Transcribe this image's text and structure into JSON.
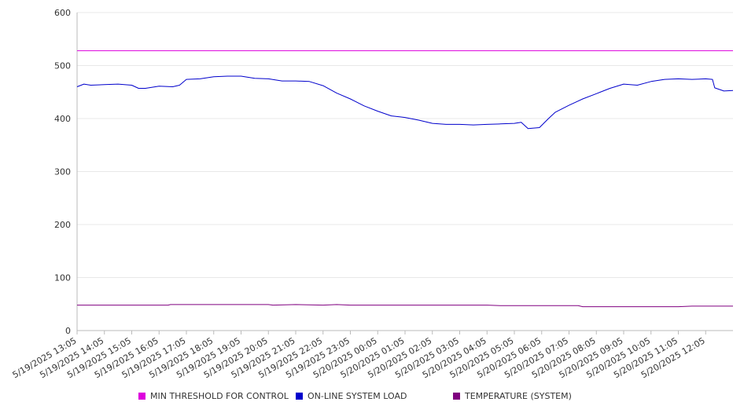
{
  "colors": {
    "threshold": "#dd00dd",
    "load": "#0000cc",
    "temperature": "#800080",
    "grid": "#e8e8e8",
    "axis": "#bbbbbb",
    "text": "#333333"
  },
  "legend": {
    "threshold": "MIN THRESHOLD FOR CONTROL",
    "load": "ON-LINE SYSTEM LOAD",
    "temperature": "TEMPERATURE (SYSTEM)"
  },
  "chart_data": {
    "type": "line",
    "title": "",
    "xlabel": "",
    "ylabel": "",
    "ylim": [
      0,
      600
    ],
    "yticks": [
      0,
      100,
      200,
      300,
      400,
      500,
      600
    ],
    "grid": true,
    "legend_position": "bottom",
    "x_tick_labels": [
      "5/19/2025 13:05",
      "5/19/2025 14:05",
      "5/19/2025 15:05",
      "5/19/2025 16:05",
      "5/19/2025 17:05",
      "5/19/2025 18:05",
      "5/19/2025 19:05",
      "5/19/2025 20:05",
      "5/19/2025 21:05",
      "5/19/2025 22:05",
      "5/19/2025 23:05",
      "5/20/2025 00:05",
      "5/20/2025 01:05",
      "5/20/2025 02:05",
      "5/20/2025 03:05",
      "5/20/2025 04:05",
      "5/20/2025 05:05",
      "5/20/2025 06:05",
      "5/20/2025 07:05",
      "5/20/2025 08:05",
      "5/20/2025 09:05",
      "5/20/2025 10:05",
      "5/20/2025 11:05",
      "5/20/2025 12:05"
    ],
    "x_range": [
      "5/19/2025 13:05",
      "5/20/2025 13:05"
    ],
    "series": [
      {
        "name": "MIN THRESHOLD FOR CONTROL",
        "color": "#dd00dd",
        "points": [
          [
            "5/19/2025 13:05",
            528
          ],
          [
            "5/20/2025 13:05",
            528
          ]
        ]
      },
      {
        "name": "ON-LINE SYSTEM LOAD",
        "color": "#0000cc",
        "points": [
          [
            "5/19/2025 13:05",
            460
          ],
          [
            "5/19/2025 13:20",
            465
          ],
          [
            "5/19/2025 13:35",
            463
          ],
          [
            "5/19/2025 14:05",
            464
          ],
          [
            "5/19/2025 14:35",
            465
          ],
          [
            "5/19/2025 15:05",
            463
          ],
          [
            "5/19/2025 15:20",
            457
          ],
          [
            "5/19/2025 15:35",
            457
          ],
          [
            "5/19/2025 16:05",
            461
          ],
          [
            "5/19/2025 16:35",
            460
          ],
          [
            "5/19/2025 16:50",
            463
          ],
          [
            "5/19/2025 17:05",
            474
          ],
          [
            "5/19/2025 17:35",
            475
          ],
          [
            "5/19/2025 18:05",
            479
          ],
          [
            "5/19/2025 18:35",
            480
          ],
          [
            "5/19/2025 19:05",
            480
          ],
          [
            "5/19/2025 19:35",
            476
          ],
          [
            "5/19/2025 20:05",
            475
          ],
          [
            "5/19/2025 20:35",
            471
          ],
          [
            "5/19/2025 21:05",
            471
          ],
          [
            "5/19/2025 21:35",
            470
          ],
          [
            "5/19/2025 22:05",
            462
          ],
          [
            "5/19/2025 22:35",
            448
          ],
          [
            "5/19/2025 23:05",
            437
          ],
          [
            "5/19/2025 23:35",
            424
          ],
          [
            "5/20/2025 00:05",
            414
          ],
          [
            "5/20/2025 00:35",
            405
          ],
          [
            "5/20/2025 01:05",
            402
          ],
          [
            "5/20/2025 01:35",
            397
          ],
          [
            "5/20/2025 02:05",
            391
          ],
          [
            "5/20/2025 02:35",
            389
          ],
          [
            "5/20/2025 03:05",
            389
          ],
          [
            "5/20/2025 03:35",
            388
          ],
          [
            "5/20/2025 04:05",
            389
          ],
          [
            "5/20/2025 04:35",
            390
          ],
          [
            "5/20/2025 05:05",
            391
          ],
          [
            "5/20/2025 05:20",
            393
          ],
          [
            "5/20/2025 05:35",
            381
          ],
          [
            "5/20/2025 06:00",
            383
          ],
          [
            "5/20/2025 06:20",
            400
          ],
          [
            "5/20/2025 06:35",
            412
          ],
          [
            "5/20/2025 07:05",
            425
          ],
          [
            "5/20/2025 07:35",
            437
          ],
          [
            "5/20/2025 08:05",
            447
          ],
          [
            "5/20/2025 08:35",
            457
          ],
          [
            "5/20/2025 09:05",
            465
          ],
          [
            "5/20/2025 09:35",
            463
          ],
          [
            "5/20/2025 10:05",
            470
          ],
          [
            "5/20/2025 10:35",
            474
          ],
          [
            "5/20/2025 11:05",
            475
          ],
          [
            "5/20/2025 11:35",
            474
          ],
          [
            "5/20/2025 12:05",
            475
          ],
          [
            "5/20/2025 12:20",
            474
          ],
          [
            "5/20/2025 12:25",
            458
          ],
          [
            "5/20/2025 12:45",
            452
          ],
          [
            "5/20/2025 13:05",
            453
          ]
        ]
      },
      {
        "name": "TEMPERATURE (SYSTEM)",
        "color": "#800080",
        "points": [
          [
            "5/19/2025 13:05",
            48
          ],
          [
            "5/19/2025 16:25",
            48
          ],
          [
            "5/19/2025 16:30",
            49
          ],
          [
            "5/19/2025 20:05",
            49
          ],
          [
            "5/19/2025 20:15",
            48
          ],
          [
            "5/19/2025 21:05",
            49
          ],
          [
            "5/19/2025 22:05",
            48
          ],
          [
            "5/19/2025 22:35",
            49
          ],
          [
            "5/19/2025 23:05",
            48
          ],
          [
            "5/20/2025 04:05",
            48
          ],
          [
            "5/20/2025 04:35",
            47
          ],
          [
            "5/20/2025 07:25",
            47
          ],
          [
            "5/20/2025 07:35",
            45
          ],
          [
            "5/20/2025 08:05",
            45
          ],
          [
            "5/20/2025 11:05",
            45
          ],
          [
            "5/20/2025 11:35",
            46
          ],
          [
            "5/20/2025 13:05",
            46
          ]
        ]
      }
    ]
  }
}
